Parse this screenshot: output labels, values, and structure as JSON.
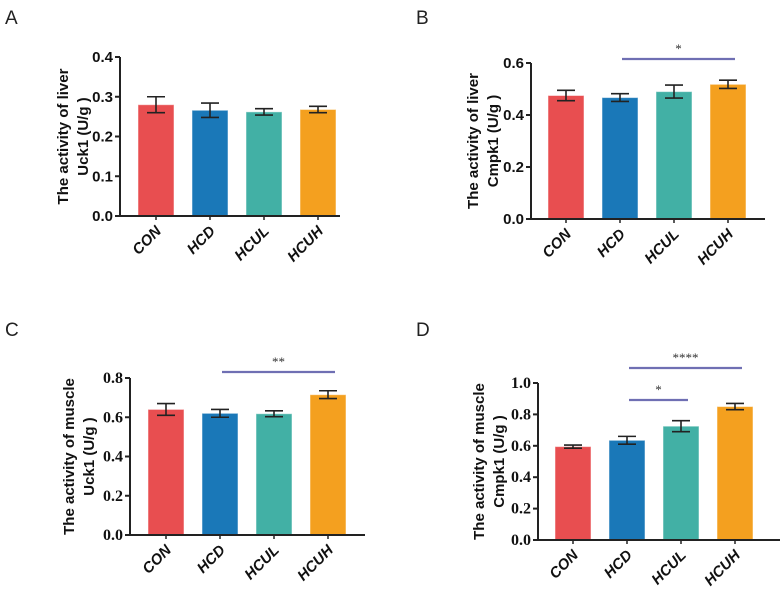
{
  "chart_data": [
    {
      "panel": "A",
      "type": "bar",
      "ylabel": [
        "The activity of liver",
        "Uck1 (U/g )"
      ],
      "categories": [
        "CON",
        "HCD",
        "HCUL",
        "HCUH"
      ],
      "values": [
        0.28,
        0.266,
        0.262,
        0.268
      ],
      "errors": [
        0.02,
        0.018,
        0.008,
        0.008
      ],
      "ylim": [
        0,
        0.4
      ],
      "yticks": [
        "0.0",
        "0.1",
        "0.2",
        "0.3",
        "0.4"
      ],
      "significance": []
    },
    {
      "panel": "B",
      "type": "bar",
      "ylabel": [
        "The activity of liver",
        "Cmpk1 (U/g )"
      ],
      "categories": [
        "CON",
        "HCD",
        "HCUL",
        "HCUH"
      ],
      "values": [
        0.475,
        0.467,
        0.49,
        0.518
      ],
      "errors": [
        0.02,
        0.015,
        0.025,
        0.016
      ],
      "ylim": [
        0,
        0.6
      ],
      "yticks": [
        "0.0",
        "0.2",
        "0.4",
        "0.6"
      ],
      "significance": [
        {
          "from": "HCD",
          "to": "HCUH",
          "label": "*"
        }
      ]
    },
    {
      "panel": "C",
      "type": "bar",
      "ylabel": [
        "The activity of muscle",
        "Uck1 (U/g )"
      ],
      "categories": [
        "CON",
        "HCD",
        "HCUL",
        "HCUH"
      ],
      "values": [
        0.64,
        0.62,
        0.618,
        0.715
      ],
      "errors": [
        0.03,
        0.02,
        0.015,
        0.02
      ],
      "ylim": [
        0,
        0.8
      ],
      "yticks": [
        "0.0",
        "0.2",
        "0.4",
        "0.6",
        "0.8"
      ],
      "significance": [
        {
          "from": "HCD",
          "to": "HCUH",
          "label": "**"
        }
      ]
    },
    {
      "panel": "D",
      "type": "bar",
      "ylabel": [
        "The activity of muscle",
        "Cmpk1 (U/g )"
      ],
      "categories": [
        "CON",
        "HCD",
        "HCUL",
        "HCUH"
      ],
      "values": [
        0.595,
        0.635,
        0.725,
        0.85
      ],
      "errors": [
        0.01,
        0.025,
        0.035,
        0.02
      ],
      "ylim": [
        0,
        1.0
      ],
      "yticks": [
        "0.0",
        "0.2",
        "0.4",
        "0.6",
        "0.8",
        "1.0"
      ],
      "significance": [
        {
          "from": "HCD",
          "to": "HCUL",
          "label": "*"
        },
        {
          "from": "HCD",
          "to": "HCUH",
          "label": "****"
        }
      ]
    }
  ],
  "colors": {
    "CON": "#e84e50",
    "HCD": "#1a78b8",
    "HCUL": "#42b0a5",
    "HCUH": "#f4a01f",
    "sig_line": "#6f6fb3",
    "axis": "#222222"
  }
}
